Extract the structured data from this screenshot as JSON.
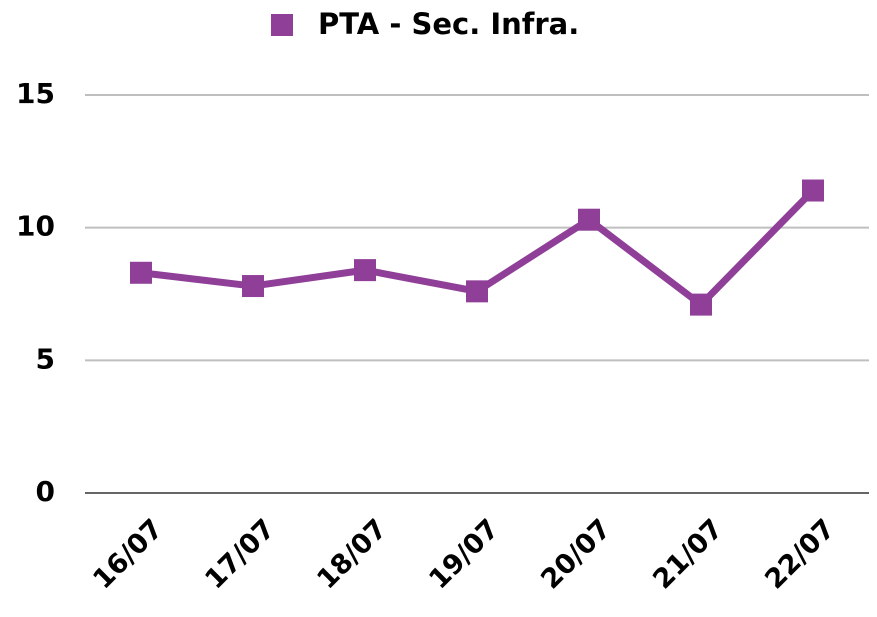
{
  "chart_data": {
    "type": "line",
    "categories": [
      "16/07",
      "17/07",
      "18/07",
      "19/07",
      "20/07",
      "21/07",
      "22/07"
    ],
    "series": [
      {
        "name": "PTA - Sec. Infra.",
        "color": "#8f3f97",
        "values": [
          8.3,
          7.8,
          8.4,
          7.6,
          10.3,
          7.1,
          11.4
        ]
      }
    ],
    "ylim": [
      0,
      15
    ],
    "yticks": [
      0,
      5,
      10,
      15
    ],
    "grid": true,
    "legend": "top"
  }
}
